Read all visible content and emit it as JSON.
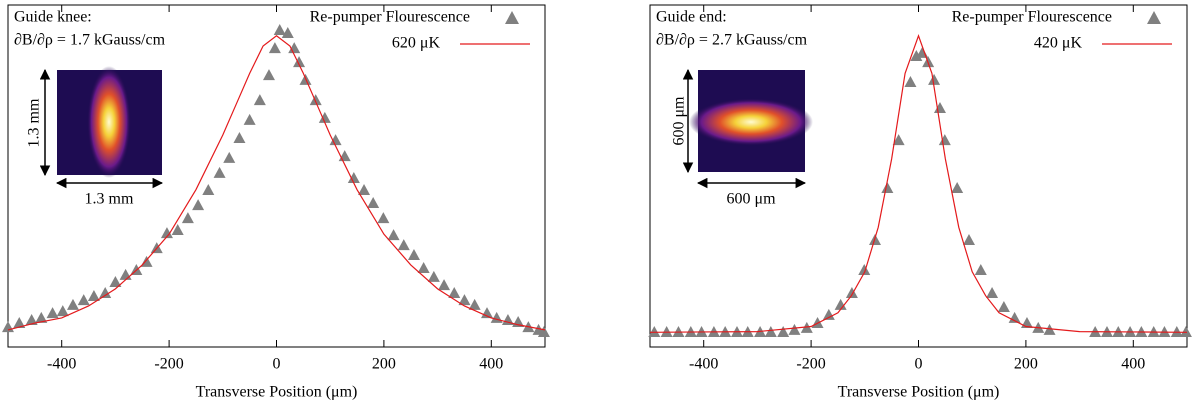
{
  "chart_data": [
    {
      "type": "scatter",
      "annotations": [
        "Guide knee:",
        "∂B/∂ρ = 1.7 kGauss/cm"
      ],
      "inset_labels": [
        "1.3 mm",
        "1.3 mm"
      ],
      "xlabel": "Transverse Position (μm)",
      "xlim": [
        -500,
        500
      ],
      "xticks": [
        -400,
        -200,
        0,
        200,
        400
      ],
      "ylim": [
        0,
        1
      ],
      "series": [
        {
          "name": "Re-pumper Flourescence",
          "color": "#808080",
          "marker": "triangle",
          "x": [
            -500,
            -479,
            -456,
            -438,
            -417,
            -398,
            -379,
            -359,
            -340,
            -319,
            -300,
            -281,
            -261,
            -242,
            -223,
            -204,
            -184,
            -165,
            -146,
            -127,
            -106,
            -88,
            -69,
            -50,
            -31,
            -14,
            -3,
            6,
            21,
            33,
            42,
            54,
            73,
            90,
            110,
            127,
            144,
            163,
            180,
            199,
            218,
            237,
            256,
            274,
            293,
            312,
            331,
            350,
            369,
            392,
            410,
            431,
            450,
            469,
            488,
            498
          ],
          "values": [
            0.058,
            0.07,
            0.079,
            0.085,
            0.099,
            0.105,
            0.123,
            0.137,
            0.149,
            0.158,
            0.19,
            0.211,
            0.225,
            0.249,
            0.289,
            0.333,
            0.342,
            0.377,
            0.415,
            0.459,
            0.509,
            0.553,
            0.611,
            0.664,
            0.722,
            0.795,
            0.874,
            0.927,
            0.918,
            0.874,
            0.833,
            0.781,
            0.722,
            0.67,
            0.605,
            0.558,
            0.494,
            0.459,
            0.421,
            0.377,
            0.327,
            0.298,
            0.269,
            0.231,
            0.205,
            0.181,
            0.158,
            0.137,
            0.123,
            0.099,
            0.085,
            0.079,
            0.073,
            0.058,
            0.05,
            0.044
          ]
        },
        {
          "name": "620 μK",
          "color": "#e41a1c",
          "marker": "line",
          "x": [
            -500,
            -450,
            -400,
            -350,
            -300,
            -250,
            -200,
            -150,
            -100,
            -75,
            -50,
            -25,
            0,
            25,
            50,
            75,
            100,
            150,
            200,
            250,
            300,
            350,
            400,
            450,
            500
          ],
          "values": [
            0.05,
            0.07,
            0.085,
            0.12,
            0.17,
            0.24,
            0.33,
            0.46,
            0.62,
            0.71,
            0.8,
            0.88,
            0.91,
            0.88,
            0.8,
            0.71,
            0.62,
            0.46,
            0.33,
            0.24,
            0.17,
            0.12,
            0.085,
            0.065,
            0.05
          ]
        }
      ]
    },
    {
      "type": "scatter",
      "annotations": [
        "Guide end:",
        "∂B/∂ρ = 2.7 kGauss/cm"
      ],
      "inset_labels": [
        "600 μm",
        "600 μm"
      ],
      "xlabel": "Transverse Position (μm)",
      "xlim": [
        -500,
        500
      ],
      "xticks": [
        -400,
        -200,
        0,
        200,
        400
      ],
      "ylim": [
        0,
        1
      ],
      "series": [
        {
          "name": "Re-pumper Flourescence",
          "color": "#808080",
          "marker": "triangle",
          "x": [
            -492,
            -469,
            -447,
            -424,
            -404,
            -381,
            -360,
            -338,
            -318,
            -295,
            -275,
            -252,
            -231,
            -208,
            -188,
            -167,
            -145,
            -124,
            -101,
            -81,
            -58,
            -37,
            -15,
            -4,
            7,
            18,
            29,
            40,
            49,
            72,
            94,
            116,
            137,
            159,
            179,
            202,
            223,
            244,
            329,
            351,
            372,
            394,
            415,
            438,
            458,
            481,
            498
          ],
          "values": [
            0.044,
            0.044,
            0.044,
            0.044,
            0.044,
            0.044,
            0.044,
            0.044,
            0.044,
            0.044,
            0.044,
            0.044,
            0.05,
            0.056,
            0.07,
            0.094,
            0.123,
            0.158,
            0.225,
            0.313,
            0.465,
            0.605,
            0.775,
            0.851,
            0.86,
            0.833,
            0.781,
            0.699,
            0.605,
            0.465,
            0.313,
            0.225,
            0.158,
            0.117,
            0.085,
            0.07,
            0.056,
            0.05,
            0.044,
            0.044,
            0.044,
            0.044,
            0.044,
            0.044,
            0.044,
            0.044,
            0.044
          ]
        },
        {
          "name": "420 μK",
          "color": "#e41a1c",
          "marker": "line",
          "x": [
            -500,
            -400,
            -300,
            -200,
            -150,
            -125,
            -100,
            -75,
            -50,
            -25,
            0,
            25,
            50,
            75,
            100,
            125,
            150,
            200,
            300,
            400,
            500
          ],
          "values": [
            0.043,
            0.044,
            0.045,
            0.06,
            0.1,
            0.15,
            0.22,
            0.35,
            0.55,
            0.8,
            0.91,
            0.8,
            0.55,
            0.35,
            0.22,
            0.15,
            0.1,
            0.06,
            0.045,
            0.044,
            0.043
          ]
        }
      ]
    }
  ]
}
